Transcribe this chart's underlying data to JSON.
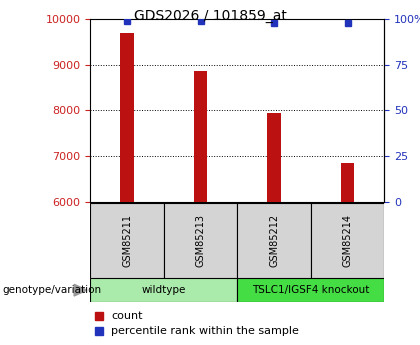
{
  "title": "GDS2026 / 101859_at",
  "samples": [
    "GSM85211",
    "GSM85213",
    "GSM85212",
    "GSM85214"
  ],
  "counts": [
    9700,
    8860,
    7950,
    6860
  ],
  "percentiles": [
    99,
    99,
    98,
    98
  ],
  "ylim_left": [
    6000,
    10000
  ],
  "ylim_right": [
    0,
    100
  ],
  "yticks_left": [
    6000,
    7000,
    8000,
    9000,
    10000
  ],
  "yticks_right": [
    0,
    25,
    50,
    75,
    100
  ],
  "bar_color": "#BB1111",
  "dot_color": "#2233BB",
  "bar_width": 0.18,
  "group_labels": [
    "wildtype",
    "TSLC1/IGSF4 knockout"
  ],
  "group_colors": [
    "#aaeaaa",
    "#44dd44"
  ],
  "sample_box_color": "#d4d4d4",
  "legend_bar_label": "count",
  "legend_dot_label": "percentile rank within the sample",
  "genotype_label": "genotype/variation",
  "background_color": "#ffffff",
  "axis_left_color": "#CC2222",
  "axis_right_color": "#2233BB",
  "title_fontsize": 10,
  "tick_fontsize": 8,
  "sample_fontsize": 7,
  "group_fontsize": 7.5,
  "legend_fontsize": 8
}
